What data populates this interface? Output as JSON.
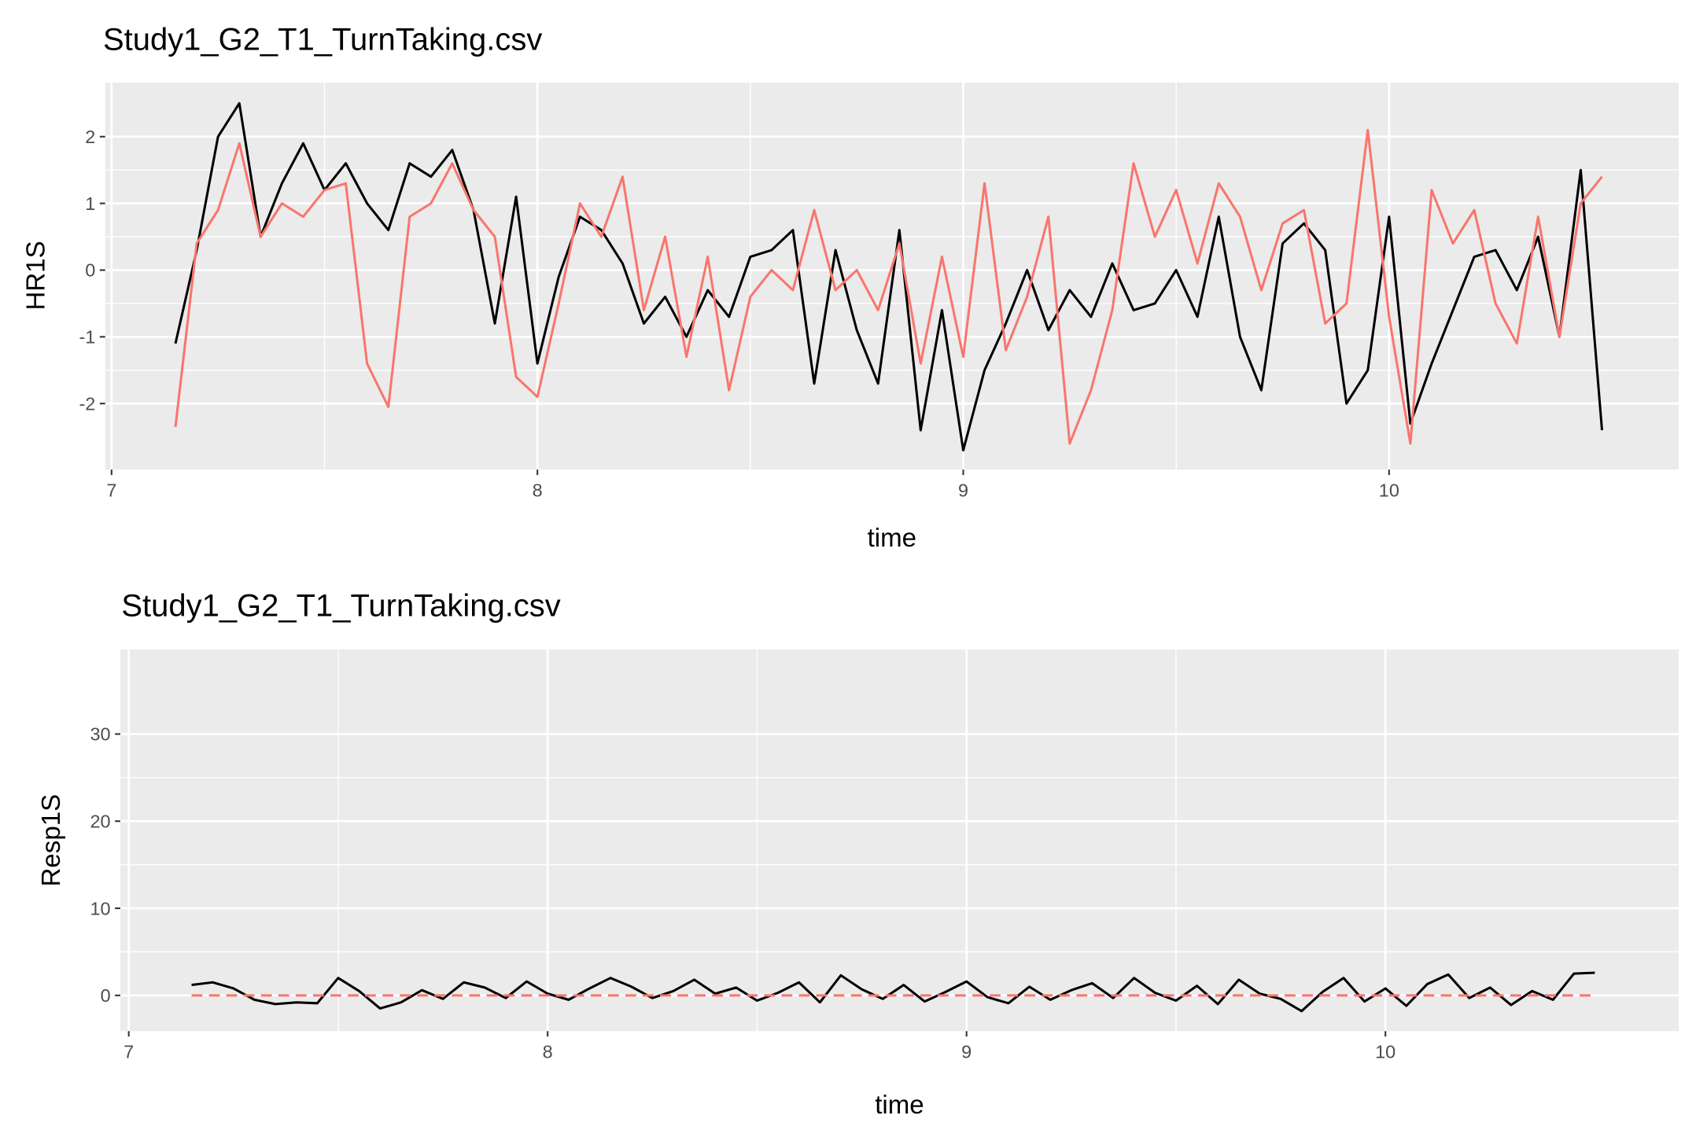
{
  "chart_data": [
    {
      "type": "line",
      "title": "Study1_G2_T1_TurnTaking.csv",
      "x_label": "time",
      "y_label": "HR1S",
      "x": [
        7.15,
        7.2,
        7.25,
        7.3,
        7.35,
        7.4,
        7.45,
        7.5,
        7.55,
        7.6,
        7.65,
        7.7,
        7.75,
        7.8,
        7.85,
        7.9,
        7.95,
        8.0,
        8.05,
        8.1,
        8.15,
        8.2,
        8.25,
        8.3,
        8.35,
        8.4,
        8.45,
        8.5,
        8.55,
        8.6,
        8.65,
        8.7,
        8.75,
        8.8,
        8.85,
        8.9,
        8.95,
        9.0,
        9.05,
        9.1,
        9.15,
        9.2,
        9.25,
        9.3,
        9.35,
        9.4,
        9.45,
        9.5,
        9.55,
        9.6,
        9.65,
        9.7,
        9.75,
        9.8,
        9.85,
        9.9,
        9.95,
        10.0,
        10.05,
        10.1,
        10.15,
        10.2,
        10.25,
        10.3,
        10.35,
        10.4,
        10.45,
        10.5
      ],
      "series": [
        {
          "color": "#000000",
          "values": [
            -1.1,
            0.3,
            2.0,
            2.5,
            0.5,
            1.3,
            1.9,
            1.2,
            1.6,
            1.0,
            0.6,
            1.6,
            1.4,
            1.8,
            0.9,
            -0.8,
            1.1,
            -1.4,
            -0.1,
            0.8,
            0.6,
            0.1,
            -0.8,
            -0.4,
            -1.0,
            -0.3,
            -0.7,
            0.2,
            0.3,
            0.6,
            -1.7,
            0.3,
            -0.9,
            -1.7,
            0.6,
            -2.4,
            -0.6,
            -2.7,
            -1.5,
            -0.8,
            0.0,
            -0.9,
            -0.3,
            -0.7,
            0.1,
            -0.6,
            -0.5,
            0.0,
            -0.7,
            0.8,
            -1.0,
            -1.8,
            0.4,
            0.7,
            0.3,
            -2.0,
            -1.5,
            0.8,
            -2.3,
            -1.4,
            -0.6,
            0.2,
            0.3,
            -0.3,
            0.5,
            -1.0,
            1.5,
            -2.4
          ]
        },
        {
          "color": "#F8766D",
          "values": [
            -2.35,
            0.4,
            0.9,
            1.9,
            0.5,
            1.0,
            0.8,
            1.2,
            1.3,
            -1.4,
            -2.05,
            0.8,
            1.0,
            1.6,
            0.9,
            0.5,
            -1.6,
            -1.9,
            -0.5,
            1.0,
            0.5,
            1.4,
            -0.6,
            0.5,
            -1.3,
            0.2,
            -1.8,
            -0.4,
            0.0,
            -0.3,
            0.9,
            -0.3,
            0.0,
            -0.6,
            0.4,
            -1.4,
            0.2,
            -1.3,
            1.3,
            -1.2,
            -0.4,
            0.8,
            -2.6,
            -1.8,
            -0.6,
            1.6,
            0.5,
            1.2,
            0.1,
            1.3,
            0.8,
            -0.3,
            0.7,
            0.9,
            -0.8,
            -0.5,
            2.1,
            -0.7,
            -2.6,
            1.2,
            0.4,
            0.9,
            -0.5,
            -1.1,
            0.8,
            -1.0,
            1.0,
            1.4
          ]
        }
      ],
      "xlim": [
        6.985,
        10.68
      ],
      "ylim": [
        -2.99,
        2.81
      ],
      "xticks": [
        7,
        8,
        9,
        10
      ],
      "yticks": [
        -2,
        -1,
        0,
        1,
        2
      ],
      "grid": true
    },
    {
      "type": "line",
      "title": "Study1_G2_T1_TurnTaking.csv",
      "x_label": "time",
      "y_label": "Resp1S",
      "x": [
        7.15,
        7.2,
        7.25,
        7.3,
        7.35,
        7.4,
        7.45,
        7.5,
        7.55,
        7.6,
        7.65,
        7.7,
        7.75,
        7.8,
        7.85,
        7.9,
        7.95,
        8.0,
        8.05,
        8.1,
        8.15,
        8.2,
        8.25,
        8.3,
        8.35,
        8.4,
        8.45,
        8.5,
        8.55,
        8.6,
        8.65,
        8.7,
        8.75,
        8.8,
        8.85,
        8.9,
        8.95,
        9.0,
        9.05,
        9.1,
        9.15,
        9.2,
        9.25,
        9.3,
        9.35,
        9.4,
        9.45,
        9.5,
        9.55,
        9.6,
        9.65,
        9.7,
        9.75,
        9.8,
        9.85,
        9.9,
        9.95,
        10.0,
        10.05,
        10.1,
        10.15,
        10.2,
        10.25,
        10.3,
        10.35,
        10.4,
        10.45,
        10.5
      ],
      "series": [
        {
          "color": "#000000",
          "values": [
            1.2,
            1.5,
            0.8,
            -0.5,
            -1.0,
            -0.8,
            -0.9,
            2.0,
            0.5,
            -1.5,
            -0.8,
            0.6,
            -0.4,
            1.5,
            0.9,
            -0.3,
            1.6,
            0.2,
            -0.5,
            0.8,
            2.0,
            1.0,
            -0.3,
            0.5,
            1.8,
            0.2,
            0.9,
            -0.6,
            0.3,
            1.5,
            -0.8,
            2.3,
            0.7,
            -0.4,
            1.2,
            -0.7,
            0.4,
            1.6,
            -0.2,
            -0.9,
            1.0,
            -0.5,
            0.6,
            1.4,
            -0.3,
            2.0,
            0.3,
            -0.6,
            1.1,
            -1.0,
            1.8,
            0.2,
            -0.4,
            -1.8,
            0.4,
            2.0,
            -0.7,
            0.8,
            -1.2,
            1.3,
            2.4,
            -0.3,
            0.9,
            -1.1,
            0.5,
            -0.5,
            2.5,
            2.6
          ]
        },
        {
          "color": "#F8766D",
          "linestyle": "dashed",
          "values": [
            0,
            0,
            0,
            0,
            0,
            0,
            0,
            0,
            0,
            0,
            0,
            0,
            0,
            0,
            0,
            0,
            0,
            0,
            0,
            0,
            0,
            0,
            0,
            0,
            0,
            0,
            0,
            0,
            0,
            0,
            0,
            0,
            0,
            0,
            0,
            0,
            0,
            0,
            0,
            0,
            0,
            0,
            0,
            0,
            0,
            0,
            0,
            0,
            0,
            0,
            0,
            0,
            0,
            0,
            0,
            0,
            0,
            0,
            0,
            0,
            0,
            0,
            0,
            0,
            0,
            0,
            0,
            0
          ]
        }
      ],
      "xlim": [
        6.98,
        10.7
      ],
      "ylim": [
        -4.1,
        39.7
      ],
      "xticks": [
        7,
        8,
        9,
        10
      ],
      "yticks": [
        0,
        10,
        20,
        30
      ],
      "grid": true
    }
  ]
}
